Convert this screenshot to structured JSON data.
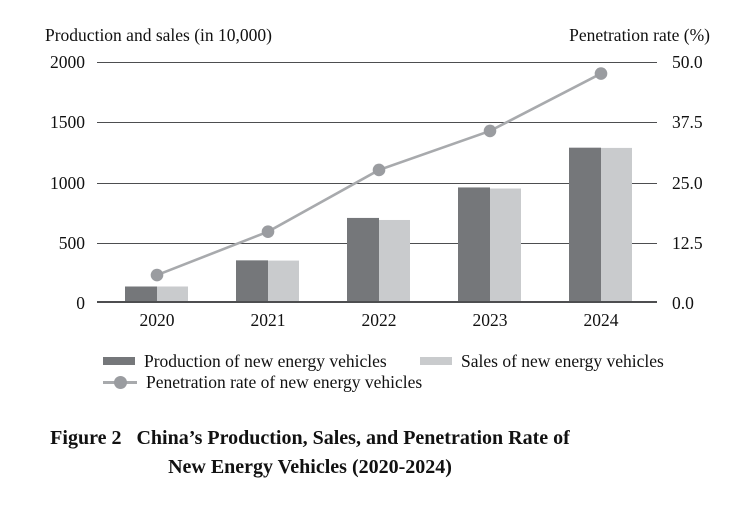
{
  "figure": {
    "axis_left_title": "Production and sales (in 10,000)",
    "axis_right_title": "Penetration rate (%)",
    "left_ticks": [
      "2000",
      "1500",
      "1000",
      "500",
      "0"
    ],
    "right_ticks": [
      "50.0",
      "37.5",
      "25.0",
      "12.5",
      "0.0"
    ],
    "caption_label": "Figure 2",
    "caption_line1": "China’s Production, Sales, and Penetration Rate of",
    "caption_line2": "New Energy Vehicles (2020-2024)"
  },
  "chart_data": {
    "type": "bar",
    "subtype": "grouped-bars-with-overlaid-line",
    "categories": [
      "2020",
      "2021",
      "2022",
      "2023",
      "2024"
    ],
    "series": [
      {
        "name": "Production of new energy vehicles",
        "type": "bar",
        "axis": "left",
        "values": [
          137,
          354,
          706,
          959,
          1289
        ],
        "color": "#75777A"
      },
      {
        "name": "Sales of new energy vehicles",
        "type": "bar",
        "axis": "left",
        "values": [
          137,
          352,
          689,
          950,
          1287
        ],
        "color": "#C9CBCD"
      },
      {
        "name": "Penetration rate of new energy vehicles",
        "type": "line",
        "axis": "right",
        "values": [
          5.8,
          14.8,
          27.6,
          35.7,
          47.6
        ],
        "color": "#A8AAAD",
        "marker_color": "#9A9CA0"
      }
    ],
    "left_axis": {
      "label": "Production and sales (in 10,000)",
      "min": 0,
      "max": 2000,
      "ticks": [
        0,
        500,
        1000,
        1500,
        2000
      ]
    },
    "right_axis": {
      "label": "Penetration rate (%)",
      "min": 0,
      "max": 50,
      "ticks": [
        0,
        12.5,
        25.0,
        37.5,
        50.0
      ]
    },
    "grid": true,
    "legend_position": "bottom",
    "gridline_color": "#4D4E50",
    "text_color": "#111111",
    "background_color": "#FFFFFF",
    "title": "Figure 2 China’s Production, Sales, and Penetration Rate of New Energy Vehicles (2020-2024)"
  }
}
